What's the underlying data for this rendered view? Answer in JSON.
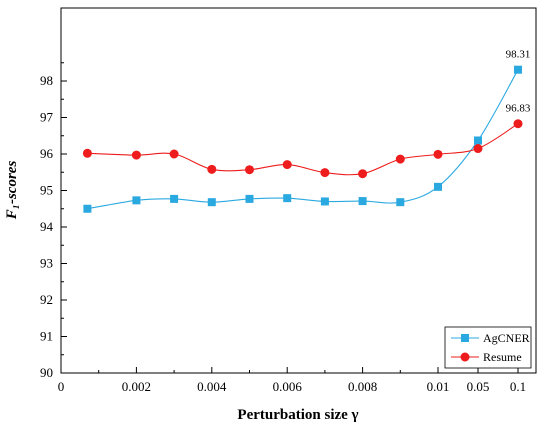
{
  "chart_data": {
    "type": "line",
    "xlabel": "Perturbation size γ",
    "ylabel": "F₁-scores",
    "x_tick_labels": [
      "0",
      "0.002",
      "0.004",
      "0.006",
      "0.008",
      "0.01",
      "0.05",
      "0.1"
    ],
    "x": [
      "0.0007",
      "0.002",
      "0.003",
      "0.004",
      "0.005",
      "0.006",
      "0.007",
      "0.008",
      "0.009",
      "0.01",
      "0.05",
      "0.1"
    ],
    "ylim": [
      90,
      100
    ],
    "y_tick_labels": [
      "90",
      "91",
      "92",
      "93",
      "94",
      "95",
      "96",
      "97",
      "98"
    ],
    "legend_position": "bottom-right",
    "series": [
      {
        "name": "AgCNER",
        "color": "#2aa9e0",
        "marker": "square",
        "values": [
          94.5,
          94.73,
          94.77,
          94.68,
          94.77,
          94.79,
          94.7,
          94.71,
          94.68,
          95.1,
          96.37,
          98.31
        ]
      },
      {
        "name": "Resume",
        "color": "#ee1c1c",
        "marker": "circle",
        "values": [
          96.02,
          95.97,
          96.0,
          95.58,
          95.57,
          95.71,
          95.49,
          95.46,
          95.86,
          95.99,
          96.15,
          96.83
        ]
      }
    ],
    "annotations": [
      {
        "text": "98.31",
        "series": 0,
        "index": 11
      },
      {
        "text": "96.83",
        "series": 1,
        "index": 11
      }
    ]
  }
}
